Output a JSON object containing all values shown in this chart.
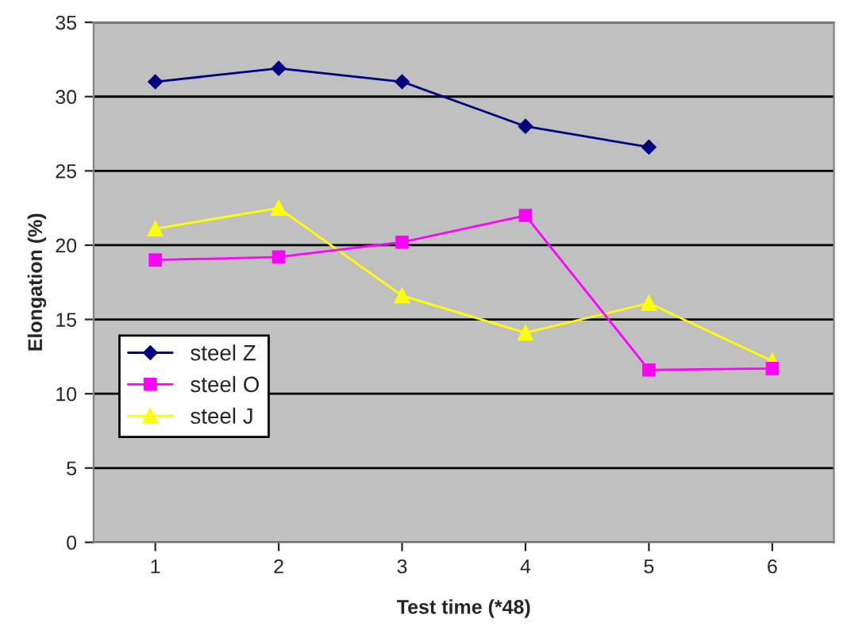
{
  "chart_data": {
    "type": "line",
    "xlabel": "Test time (*48)",
    "ylabel": "Elongation (%)",
    "categories": [
      "1",
      "2",
      "3",
      "4",
      "5",
      "6"
    ],
    "series": [
      {
        "name": "steel Z",
        "color": "#000080",
        "marker": "diamond",
        "values": [
          31.0,
          31.9,
          31.0,
          28.0,
          26.6,
          null
        ]
      },
      {
        "name": "steel O",
        "color": "#ff00ff",
        "marker": "square",
        "values": [
          19.0,
          19.2,
          20.2,
          22.0,
          11.6,
          11.7
        ]
      },
      {
        "name": "steel J",
        "color": "#ffff00",
        "marker": "triangle",
        "values": [
          21.1,
          22.5,
          16.6,
          14.1,
          16.1,
          12.2
        ]
      }
    ],
    "ylim": [
      0,
      35
    ],
    "yticks": [
      0,
      5,
      10,
      15,
      20,
      25,
      30,
      35
    ],
    "grid": "y",
    "legend": "left",
    "line_style": "solid"
  }
}
